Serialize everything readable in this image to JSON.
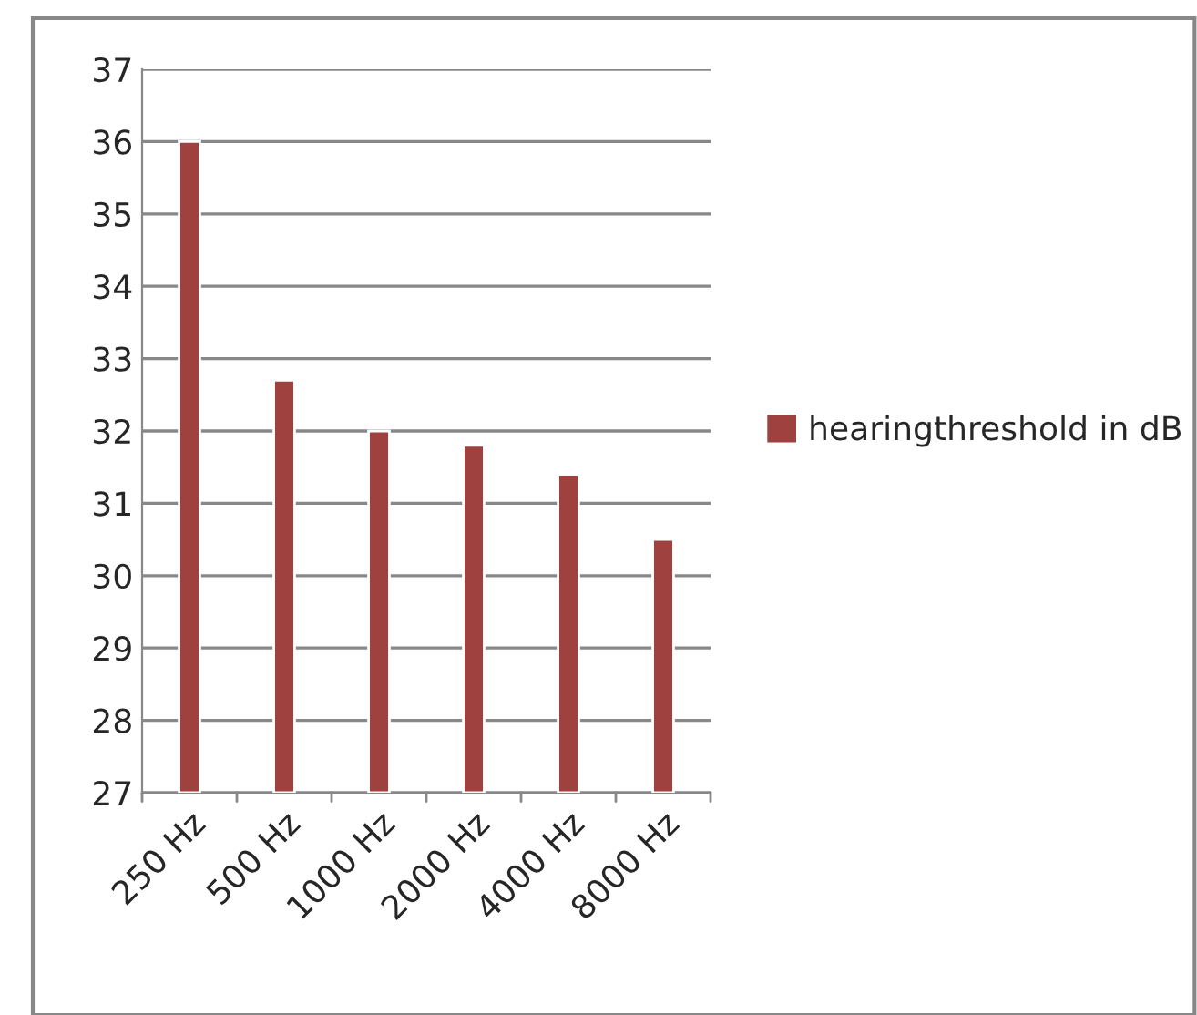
{
  "chart_data": {
    "type": "bar",
    "categories": [
      "250 Hz",
      "500 Hz",
      "1000 Hz",
      "2000 Hz",
      "4000 Hz",
      "8000 Hz"
    ],
    "series": [
      {
        "name": "hearingthreshold in dB",
        "color": "#9e413f",
        "values": [
          36,
          32.7,
          32,
          31.8,
          31.4,
          30.5
        ]
      }
    ],
    "ylim": [
      27,
      37
    ],
    "yticks": [
      27,
      28,
      29,
      30,
      31,
      32,
      33,
      34,
      35,
      36,
      37
    ],
    "grid": "y",
    "legend": "right"
  }
}
